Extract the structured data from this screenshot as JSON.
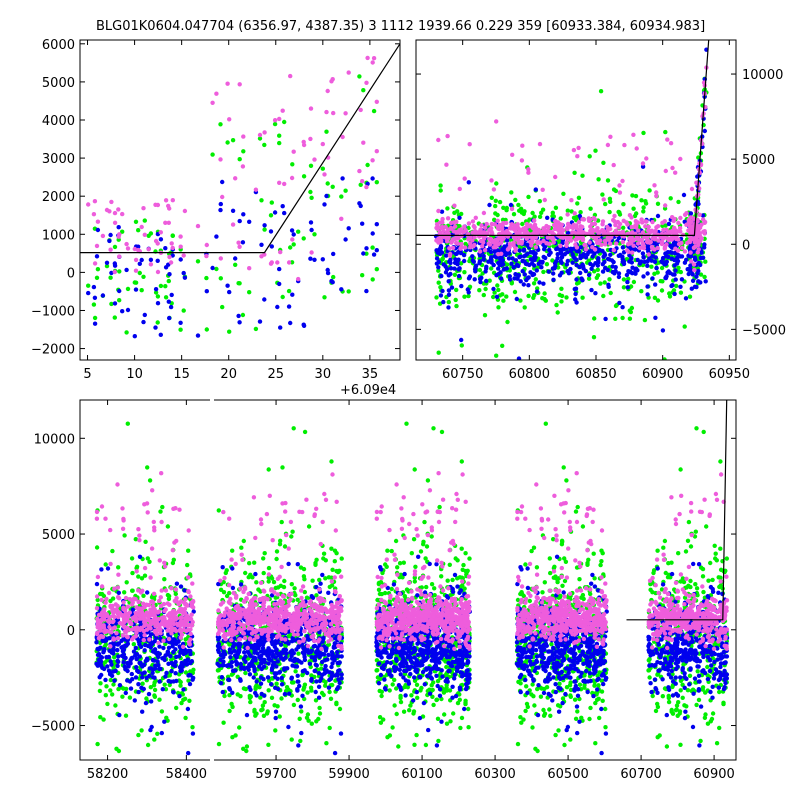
{
  "title": "BLG01K0604.047704 (6356.97, 4387.35)    3 1112 1939.66 0.229 359 [60933.384, 60934.983]",
  "colors": {
    "pink": "#ee5ddc",
    "green": "#00ee00",
    "blue": "#0000ee",
    "line": "#000000"
  },
  "chart_data": [
    {
      "id": "top-left",
      "type": "scatter",
      "xlim": [
        60904.2,
        60938.2
      ],
      "ylim": [
        -2300,
        6100
      ],
      "xticks": [
        5,
        10,
        15,
        20,
        25,
        30,
        35
      ],
      "xtick_values": [
        60905,
        60910,
        60915,
        60920,
        60925,
        60930,
        60935
      ],
      "xoffset_label": "+6.09e4",
      "yticks": [
        -2000,
        -1000,
        0,
        1000,
        2000,
        3000,
        4000,
        5000,
        6000
      ],
      "yaxis_side": "left",
      "model_line": {
        "x": [
          60904.2,
          60923.8,
          60938.2
        ],
        "y": [
          520,
          520,
          6000
        ]
      },
      "clusters": [
        {
          "x": [
            60904.5,
            60918
          ],
          "pink": [
            0,
            1900
          ],
          "green": [
            -1600,
            1500
          ],
          "blue": [
            -1700,
            1200
          ],
          "n": 55
        },
        {
          "x": [
            60918,
            60929
          ],
          "pink": [
            -200,
            5200
          ],
          "green": [
            -1800,
            4000
          ],
          "blue": [
            -1500,
            2400
          ],
          "n": 40
        },
        {
          "x": [
            60929,
            60936
          ],
          "pink": [
            1200,
            5800
          ],
          "green": [
            -700,
            5600
          ],
          "blue": [
            -700,
            2600
          ],
          "n": 25
        }
      ]
    },
    {
      "id": "top-right",
      "type": "scatter",
      "xlim": [
        60715,
        60955
      ],
      "ylim": [
        -6800,
        12000
      ],
      "xticks": [
        60750,
        60800,
        60850,
        60900,
        60950
      ],
      "yticks": [
        -5000,
        0,
        5000,
        10000
      ],
      "yaxis_side": "right",
      "model_line": {
        "x": [
          60715,
          60923.8,
          60934.5
        ],
        "y": [
          520,
          520,
          12000
        ]
      },
      "clusters": [
        {
          "x": [
            60730,
            60932
          ],
          "pink": [
            -300,
            2400
          ],
          "green": [
            -2500,
            2200
          ],
          "blue": [
            -2200,
            1200
          ],
          "n": 700
        }
      ]
    },
    {
      "id": "bottom",
      "type": "scatter",
      "xlim": [
        58130,
        60960
      ],
      "ylim": [
        -6800,
        12000
      ],
      "axis_break_at": 58590,
      "xticks": [
        58200,
        58400,
        59700,
        59900,
        60100,
        60300,
        60500,
        60700,
        60900
      ],
      "yticks": [
        -5000,
        0,
        5000,
        10000
      ],
      "yaxis_side": "left",
      "model_line": {
        "x": [
          60660,
          60923.8,
          60934.5
        ],
        "y": [
          520,
          520,
          12000
        ]
      },
      "seasons": [
        {
          "x": [
            58172,
            58418
          ],
          "n": 420
        },
        {
          "x": [
            59540,
            59880
          ],
          "n": 620
        },
        {
          "x": [
            59975,
            60230
          ],
          "n": 620
        },
        {
          "x": [
            60360,
            60605
          ],
          "n": 560
        },
        {
          "x": [
            60720,
            60935
          ],
          "n": 420
        }
      ]
    }
  ]
}
